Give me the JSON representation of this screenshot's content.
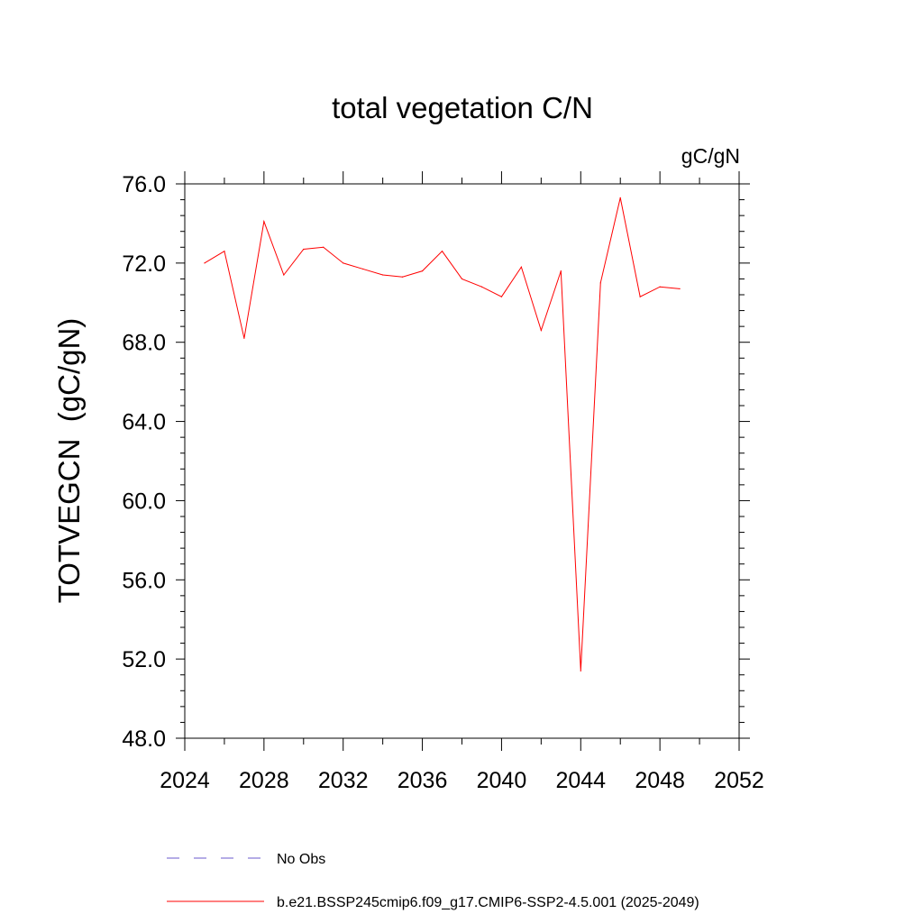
{
  "chart_data": {
    "type": "line",
    "title": "total vegetation C/N",
    "units": "gC/gN",
    "ylabel": "TOTVEGCN  (gC/gN)",
    "xlabel": "",
    "xlim": [
      2024,
      2052
    ],
    "ylim": [
      48,
      76
    ],
    "x_ticks": [
      2024,
      2028,
      2032,
      2036,
      2040,
      2044,
      2048,
      2052
    ],
    "x_tick_labels": [
      "2024",
      "2028",
      "2032",
      "2036",
      "2040",
      "2044",
      "2048",
      "2052"
    ],
    "y_ticks": [
      48,
      52,
      56,
      60,
      64,
      68,
      72,
      76
    ],
    "y_tick_labels": [
      "48.0",
      "52.0",
      "56.0",
      "60.0",
      "64.0",
      "68.0",
      "72.0",
      "76.0"
    ],
    "grid": false,
    "legend_position": "bottom",
    "series": [
      {
        "name": "b.e21.BSSP245cmip6.f09_g17.CMIP6-SSP2-4.5.001 (2025-2049)",
        "color": "#ff0000",
        "style": "solid",
        "x": [
          2025,
          2026,
          2027,
          2028,
          2029,
          2030,
          2031,
          2032,
          2033,
          2034,
          2035,
          2036,
          2037,
          2038,
          2039,
          2040,
          2041,
          2042,
          2043,
          2044,
          2045,
          2046,
          2047,
          2048,
          2049
        ],
        "values": [
          72.0,
          72.6,
          68.2,
          74.1,
          71.4,
          72.7,
          72.8,
          72.0,
          71.7,
          71.4,
          71.3,
          71.6,
          72.6,
          71.2,
          70.8,
          70.3,
          71.8,
          68.6,
          71.6,
          51.4,
          71.0,
          75.3,
          70.3,
          70.8,
          70.7
        ]
      }
    ],
    "legend": [
      {
        "label": "No Obs",
        "color": "#6a5acd",
        "style": "dashed"
      },
      {
        "label": "b.e21.BSSP245cmip6.f09_g17.CMIP6-SSP2-4.5.001 (2025-2049)",
        "color": "#ff0000",
        "style": "solid"
      }
    ]
  }
}
